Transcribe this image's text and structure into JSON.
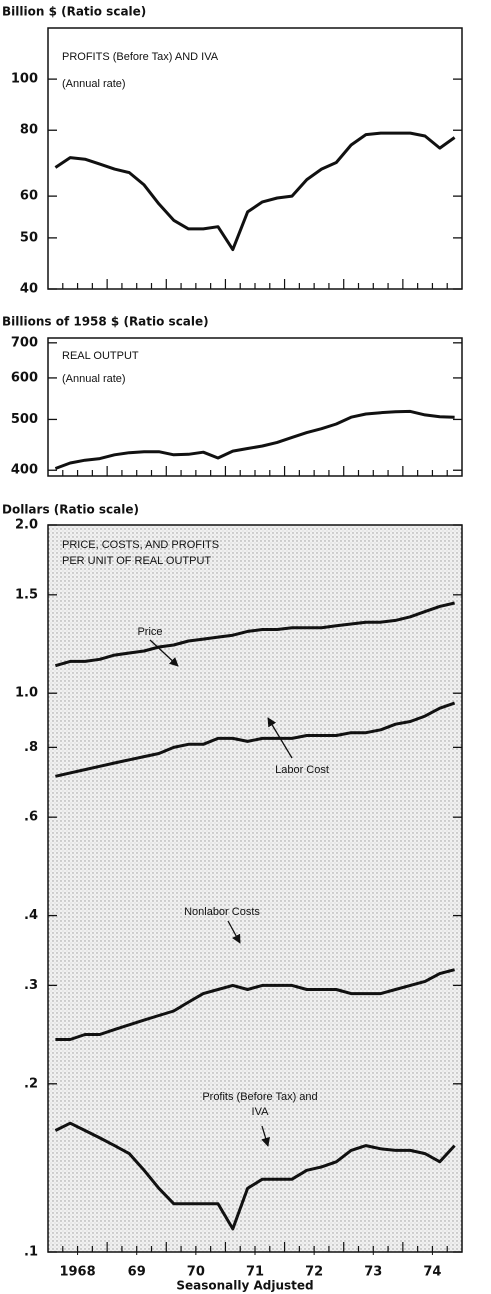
{
  "chart_data": [
    {
      "type": "line",
      "axis_label": "Billion $ (Ratio scale)",
      "title": "PROFITS (Before Tax) AND IVA",
      "subtitle": "(Annual rate)",
      "log_scale": true,
      "color": "#111111",
      "x": [
        1968.125,
        1968.375,
        1968.625,
        1968.875,
        1969.125,
        1969.375,
        1969.625,
        1969.875,
        1970.125,
        1970.375,
        1970.625,
        1970.875,
        1971.125,
        1971.375,
        1971.625,
        1971.875,
        1972.125,
        1972.375,
        1972.625,
        1972.875,
        1973.125,
        1973.375,
        1973.625,
        1973.875,
        1974.125,
        1974.375,
        1974.625,
        1974.875
      ],
      "values": [
        68,
        71,
        70.5,
        69,
        67.5,
        66.5,
        63,
        58,
        54,
        52,
        52,
        52.5,
        47.5,
        56,
        58.5,
        59.5,
        60,
        64.5,
        67.5,
        69.5,
        75,
        78.5,
        79,
        79,
        79,
        78,
        74,
        77.5
      ],
      "xlim": [
        1968,
        1975
      ],
      "ylim": [
        40,
        125
      ],
      "yticks": [
        40,
        50,
        60,
        80,
        100
      ]
    },
    {
      "type": "line",
      "axis_label": "Billions of 1958 $ (Ratio scale)",
      "title": "REAL OUTPUT",
      "subtitle": "(Annual rate)",
      "log_scale": true,
      "color": "#111111",
      "x": [
        1968.125,
        1968.375,
        1968.625,
        1968.875,
        1969.125,
        1969.375,
        1969.625,
        1969.875,
        1970.125,
        1970.375,
        1970.625,
        1970.875,
        1971.125,
        1971.375,
        1971.625,
        1971.875,
        1972.125,
        1972.375,
        1972.625,
        1972.875,
        1973.125,
        1973.375,
        1973.625,
        1973.875,
        1974.125,
        1974.375,
        1974.625,
        1974.875
      ],
      "values": [
        403,
        413,
        418,
        421,
        428,
        432,
        434,
        434,
        428,
        429,
        433,
        422,
        435,
        440,
        445,
        452,
        462,
        472,
        480,
        490,
        505,
        512,
        515,
        517,
        518,
        510,
        506,
        505
      ],
      "xlim": [
        1968,
        1975
      ],
      "ylim": [
        390,
        715
      ],
      "yticks": [
        400,
        500,
        600,
        700
      ]
    },
    {
      "type": "line",
      "axis_label": "Dollars (Ratio scale)",
      "title": "PRICE, COSTS, AND PROFITS",
      "subtitle": "PER UNIT OF REAL OUTPUT",
      "log_scale": true,
      "note": "Seasonally Adjusted",
      "x": [
        1968.125,
        1968.375,
        1968.625,
        1968.875,
        1969.125,
        1969.375,
        1969.625,
        1969.875,
        1970.125,
        1970.375,
        1970.625,
        1970.875,
        1971.125,
        1971.375,
        1971.625,
        1971.875,
        1972.125,
        1972.375,
        1972.625,
        1972.875,
        1973.125,
        1973.375,
        1973.625,
        1973.875,
        1974.125,
        1974.375,
        1974.625,
        1974.875
      ],
      "series": [
        {
          "name": "Price",
          "color": "#111111",
          "values": [
            1.12,
            1.14,
            1.14,
            1.15,
            1.17,
            1.18,
            1.19,
            1.21,
            1.22,
            1.24,
            1.25,
            1.26,
            1.27,
            1.29,
            1.3,
            1.3,
            1.31,
            1.31,
            1.31,
            1.32,
            1.33,
            1.34,
            1.34,
            1.35,
            1.37,
            1.4,
            1.43,
            1.45
          ]
        },
        {
          "name": "Labor Cost",
          "color": "#111111",
          "values": [
            0.71,
            0.72,
            0.73,
            0.74,
            0.75,
            0.76,
            0.77,
            0.78,
            0.8,
            0.81,
            0.81,
            0.83,
            0.83,
            0.82,
            0.83,
            0.83,
            0.83,
            0.84,
            0.84,
            0.84,
            0.85,
            0.85,
            0.86,
            0.88,
            0.89,
            0.91,
            0.94,
            0.96
          ]
        },
        {
          "name": "Nonlabor Costs",
          "color": "#111111",
          "values": [
            0.24,
            0.24,
            0.245,
            0.245,
            0.25,
            0.255,
            0.26,
            0.265,
            0.27,
            0.28,
            0.29,
            0.295,
            0.3,
            0.295,
            0.3,
            0.3,
            0.3,
            0.295,
            0.295,
            0.295,
            0.29,
            0.29,
            0.29,
            0.295,
            0.3,
            0.305,
            0.315,
            0.32
          ]
        },
        {
          "name": "Profits (Before Tax) and IVA",
          "color": "#111111",
          "values": [
            0.165,
            0.17,
            0.165,
            0.16,
            0.155,
            0.15,
            0.14,
            0.13,
            0.122,
            0.122,
            0.122,
            0.122,
            0.11,
            0.13,
            0.135,
            0.135,
            0.135,
            0.14,
            0.142,
            0.145,
            0.152,
            0.155,
            0.153,
            0.152,
            0.152,
            0.15,
            0.145,
            0.155
          ]
        }
      ],
      "xlim": [
        1968,
        1975
      ],
      "xticks": [
        {
          "value": 1968.5,
          "label": "1968"
        },
        {
          "value": 1969.5,
          "label": "69"
        },
        {
          "value": 1970.5,
          "label": "70"
        },
        {
          "value": 1971.5,
          "label": "71"
        },
        {
          "value": 1972.5,
          "label": "72"
        },
        {
          "value": 1973.5,
          "label": "73"
        },
        {
          "value": 1974.5,
          "label": "74"
        }
      ],
      "ylim": [
        0.1,
        2
      ],
      "yticks": [
        {
          "value": 2,
          "label": "2.0"
        },
        1.5,
        {
          "value": 1,
          "label": "1.0"
        },
        {
          "value": 0.8,
          "label": ".8"
        },
        {
          "value": 0.6,
          "label": ".6"
        },
        {
          "value": 0.4,
          "label": ".4"
        },
        {
          "value": 0.3,
          "label": ".3"
        },
        {
          "value": 0.2,
          "label": ".2"
        },
        {
          "value": 0.1,
          "label": ".1"
        }
      ]
    }
  ]
}
